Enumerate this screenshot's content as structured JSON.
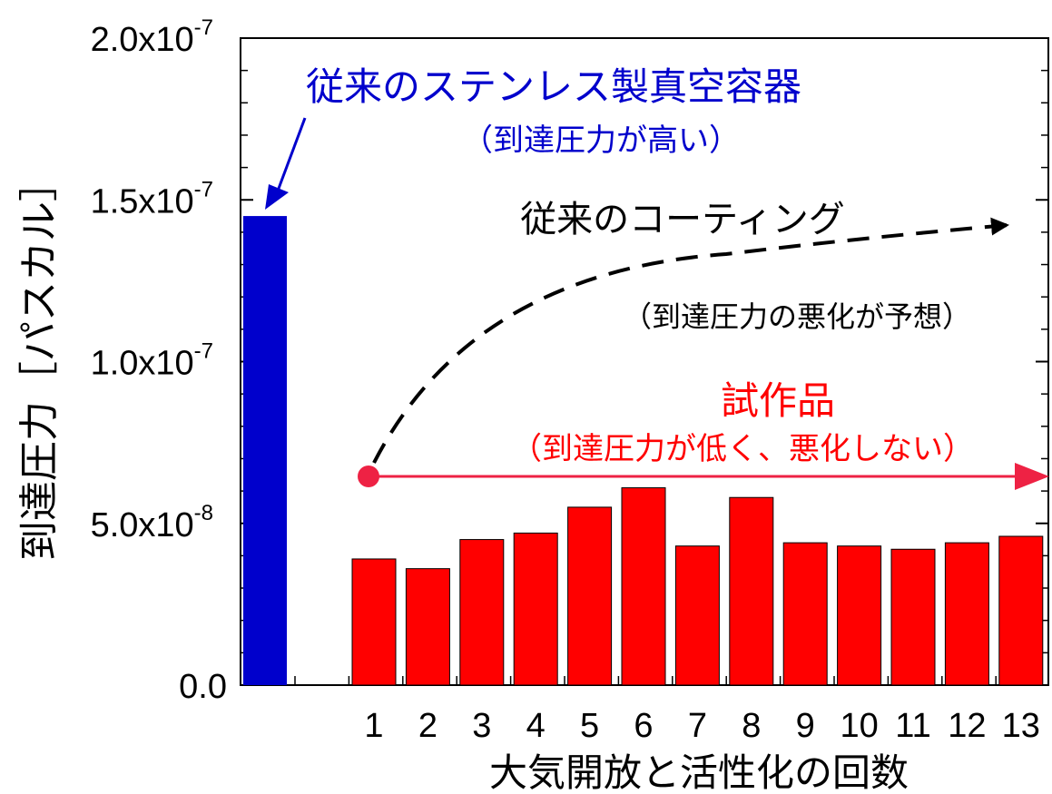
{
  "chart_data": {
    "type": "bar",
    "ylabel": "到達圧力［パスカル］",
    "xlabel": "大気開放と活性化の回数",
    "ylim": [
      0,
      2e-07
    ],
    "y_ticks": [
      {
        "value": 0,
        "base": "0.0",
        "exp": ""
      },
      {
        "value": 5e-08,
        "base": "5.0x10",
        "exp": "-8"
      },
      {
        "value": 1e-07,
        "base": "1.0x10",
        "exp": "-7"
      },
      {
        "value": 1.5e-07,
        "base": "1.5x10",
        "exp": "-7"
      },
      {
        "value": 2e-07,
        "base": "2.0x10",
        "exp": "-7"
      }
    ],
    "reference_bar": {
      "value": 1.45e-07,
      "color": "#0000cc"
    },
    "categories": [
      "1",
      "2",
      "3",
      "4",
      "5",
      "6",
      "7",
      "8",
      "9",
      "10",
      "11",
      "12",
      "13"
    ],
    "values": [
      3.9e-08,
      3.6e-08,
      4.5e-08,
      4.7e-08,
      5.5e-08,
      6.1e-08,
      4.3e-08,
      5.8e-08,
      4.4e-08,
      4.3e-08,
      4.2e-08,
      4.4e-08,
      4.6e-08
    ],
    "bar_color": "#ff0000",
    "grid": false,
    "annotations": {
      "stainless_title": "従来のステンレス製真空容器",
      "stainless_sub": "（到達圧力が高い）",
      "coating_title": "従来のコーティング",
      "coating_sub": "（到達圧力の悪化が予想）",
      "prototype_title": "試作品",
      "prototype_sub": "（到達圧力が低く、悪化しない）"
    },
    "colors": {
      "blue_text": "#0000cc",
      "red_text": "#ff0000",
      "red_arrow": "#ee2244",
      "black": "#000000"
    }
  }
}
